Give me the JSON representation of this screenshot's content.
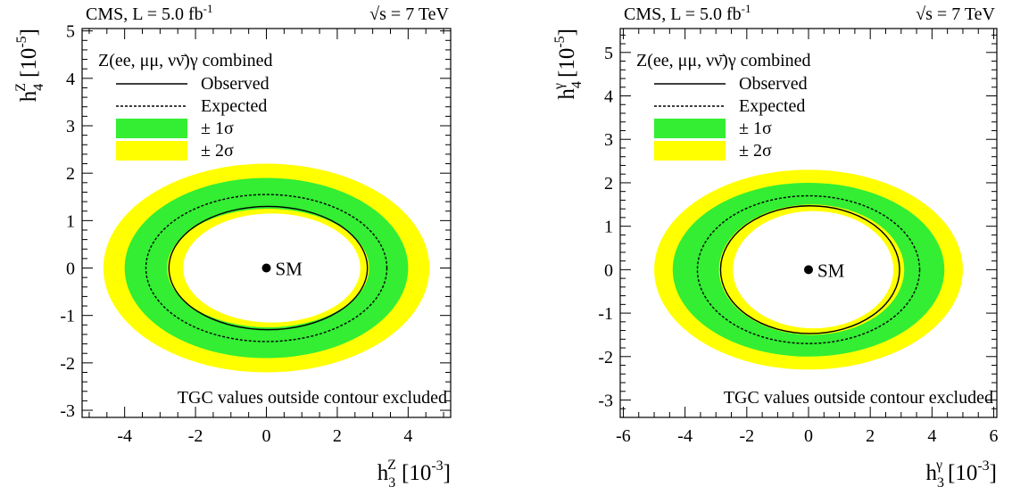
{
  "chart_data": [
    {
      "type": "contour",
      "header_left": "CMS, L = 5.0 fb",
      "header_left_sup": "-1",
      "header_right": "√s = 7 TeV",
      "xlabel": {
        "base": "h",
        "sub": "3",
        "sup": "Z",
        "unit": "[10",
        "unit_sup": "-3",
        "close": "]"
      },
      "ylabel": {
        "base": "h",
        "sub": "4",
        "sup": "Z",
        "unit": "[10",
        "unit_sup": "-5",
        "close": "]"
      },
      "xlim": [
        -5.2,
        5.2
      ],
      "ylim": [
        -3.15,
        5.05
      ],
      "xticks": [
        "-4",
        "-2",
        "0",
        "2",
        "4"
      ],
      "yticks": [
        "-3",
        "-2",
        "-1",
        "0",
        "1",
        "2",
        "3",
        "4",
        "5"
      ],
      "legend_title": "Z(ee, μμ, νν̄)γ combined",
      "legend": [
        "Observed",
        "Expected",
        "± 1σ",
        "± 2σ"
      ],
      "note": "TGC values outside contour excluded",
      "sm_label": "SM",
      "sm_point": [
        0,
        0
      ],
      "contours": {
        "two_sigma_outer": {
          "cx": 0,
          "cy": 0,
          "rx": 4.6,
          "ry": 2.2
        },
        "one_sigma_outer": {
          "cx": 0,
          "cy": 0,
          "rx": 4.0,
          "ry": 1.9
        },
        "expected": {
          "cx": 0,
          "cy": 0,
          "rx": 3.4,
          "ry": 1.55
        },
        "one_sigma_inner": {
          "cx": 0.05,
          "cy": 0,
          "rx": 2.85,
          "ry": 1.25
        },
        "observed": {
          "cx": 0.05,
          "cy": 0,
          "rx": 2.8,
          "ry": 1.3
        },
        "two_sigma_inner": {
          "cx": 0.15,
          "cy": 0,
          "rx": 2.5,
          "ry": 1.15
        }
      },
      "colors": {
        "one_sigma": "#33ee33",
        "two_sigma": "#ffff00"
      }
    },
    {
      "type": "contour",
      "header_left": "CMS, L = 5.0 fb",
      "header_left_sup": "-1",
      "header_right": "√s = 7 TeV",
      "xlabel": {
        "base": "h",
        "sub": "3",
        "sup": "γ",
        "unit": "[10",
        "unit_sup": "-3",
        "close": "]"
      },
      "ylabel": {
        "base": "h",
        "sub": "4",
        "sup": "γ",
        "unit": "[10",
        "unit_sup": "-5",
        "close": "]"
      },
      "xlim": [
        -6.1,
        6.1
      ],
      "ylim": [
        -3.4,
        5.55
      ],
      "xticks": [
        "-6",
        "-4",
        "-2",
        "0",
        "2",
        "4",
        "6"
      ],
      "yticks": [
        "-3",
        "-2",
        "-1",
        "0",
        "1",
        "2",
        "3",
        "4",
        "5"
      ],
      "legend_title": "Z(ee, μμ, νν̄)γ combined",
      "legend": [
        "Observed",
        "Expected",
        "± 1σ",
        "± 2σ"
      ],
      "note": "TGC values outside contour excluded",
      "sm_label": "SM",
      "sm_point": [
        0,
        0
      ],
      "contours": {
        "two_sigma_outer": {
          "cx": 0,
          "cy": 0,
          "rx": 5.0,
          "ry": 2.3
        },
        "one_sigma_outer": {
          "cx": 0,
          "cy": 0,
          "rx": 4.4,
          "ry": 2.0
        },
        "expected": {
          "cx": 0,
          "cy": 0,
          "rx": 3.6,
          "ry": 1.7
        },
        "one_sigma_inner": {
          "cx": 0.1,
          "cy": 0,
          "rx": 3.0,
          "ry": 1.5
        },
        "observed": {
          "cx": 0.05,
          "cy": 0,
          "rx": 2.9,
          "ry": 1.47
        },
        "two_sigma_inner": {
          "cx": 0.15,
          "cy": 0,
          "rx": 2.6,
          "ry": 1.35
        }
      },
      "colors": {
        "one_sigma": "#33ee33",
        "two_sigma": "#ffff00"
      }
    }
  ]
}
